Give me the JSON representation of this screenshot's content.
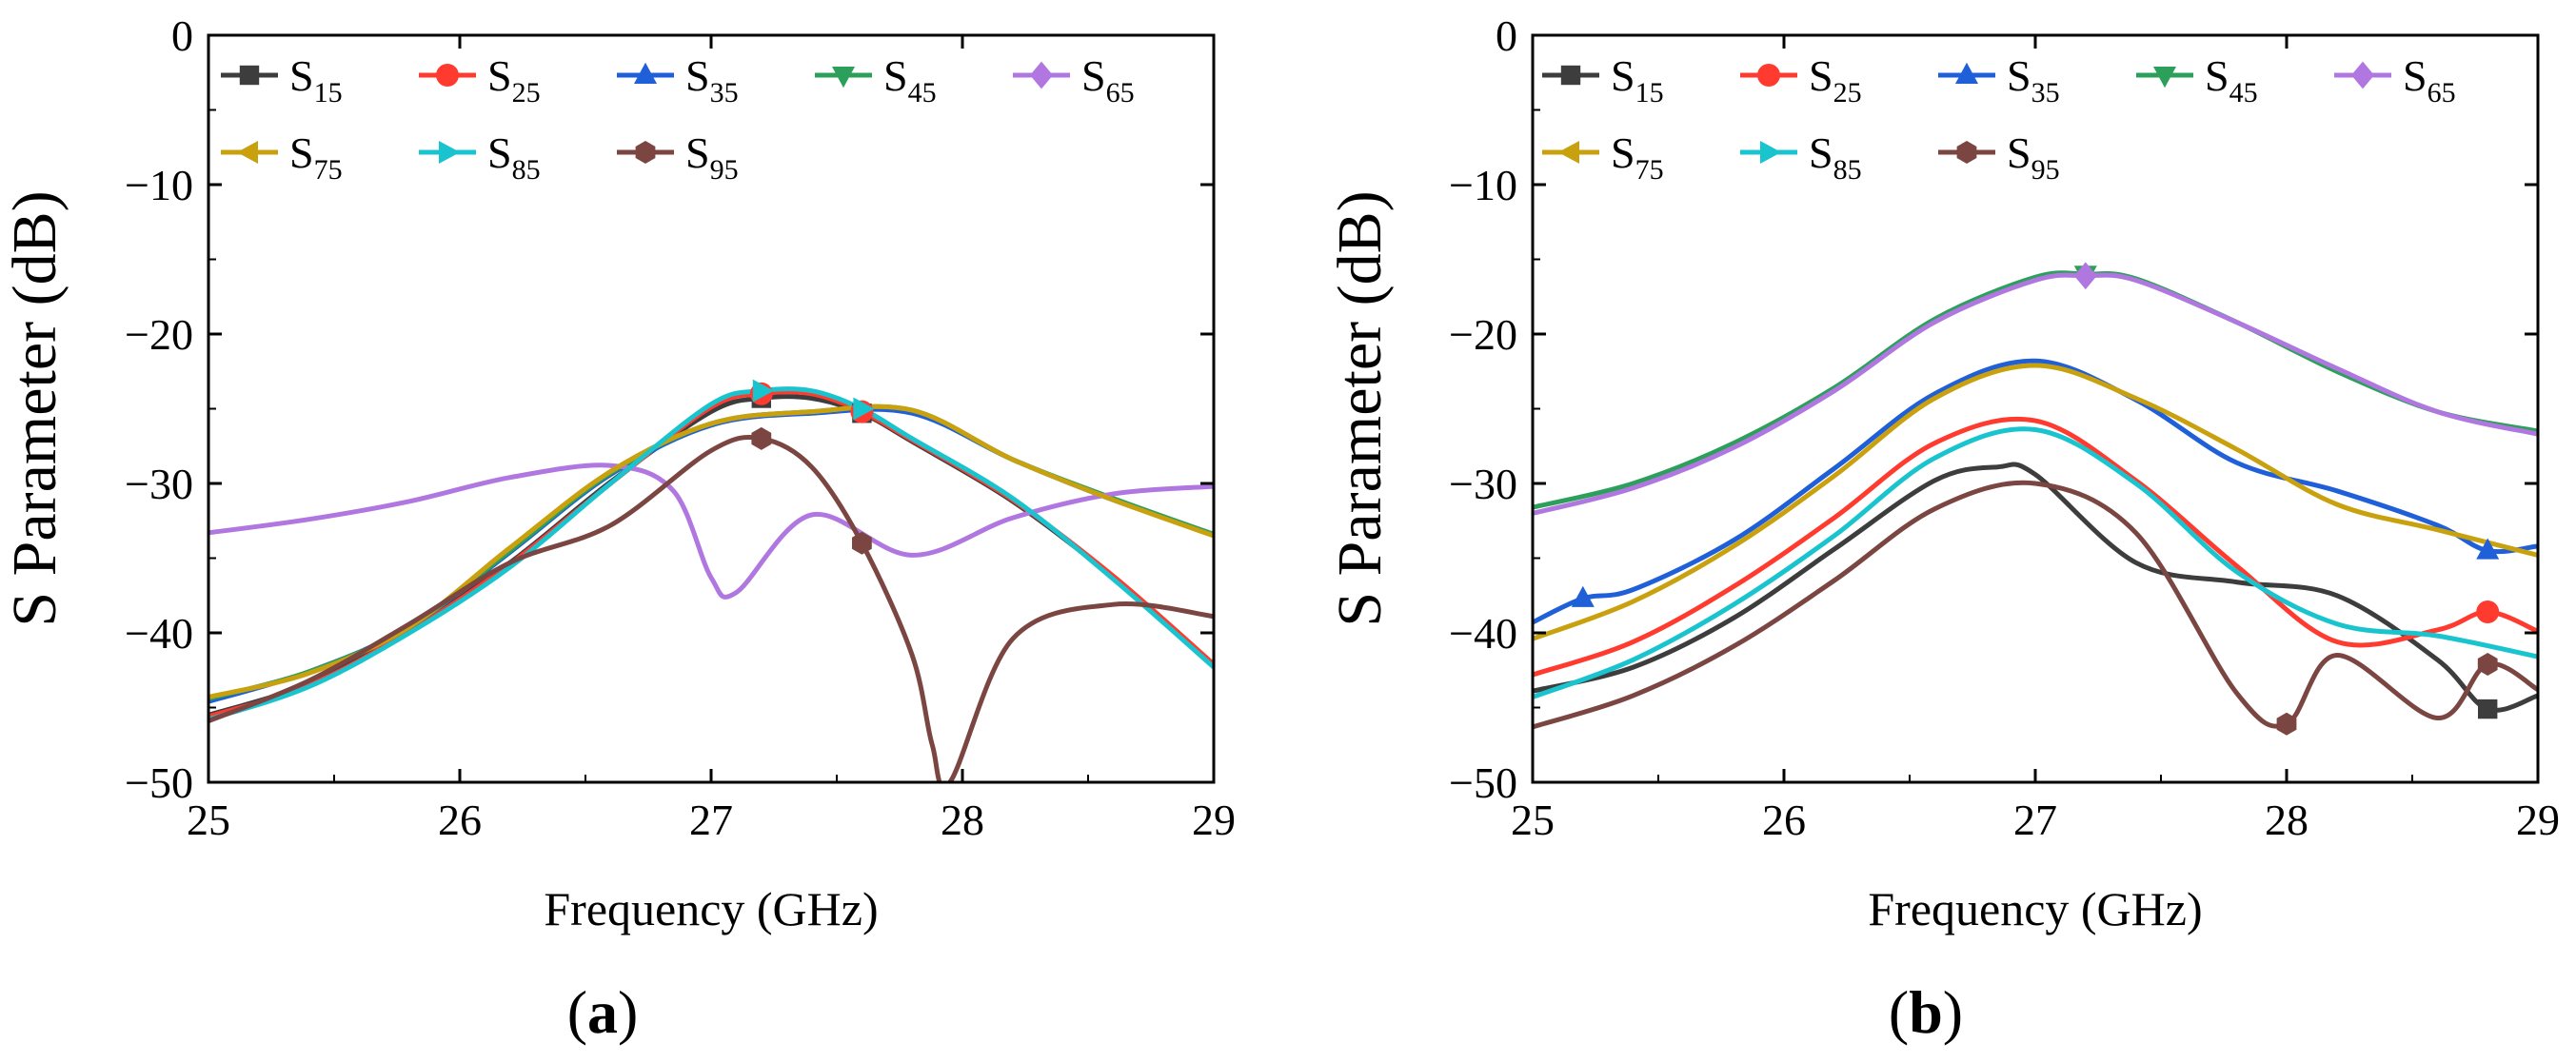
{
  "chart_data": [
    {
      "type": "line",
      "panel_label": "a",
      "xlabel": "Frequency (GHz)",
      "ylabel": "S Parameter (dB)",
      "xlim": [
        25,
        29
      ],
      "ylim": [
        -50,
        0
      ],
      "xticks": [
        25,
        26,
        27,
        28,
        29
      ],
      "yticks": [
        0,
        -10,
        -20,
        -30,
        -40,
        -50
      ],
      "ytick_labels": [
        "0",
        "−10",
        "−20",
        "−30",
        "−40",
        "−50"
      ],
      "legend": [
        [
          "S15",
          "S25",
          "S35",
          "S45",
          "S65"
        ],
        [
          "S75",
          "S85",
          "S95"
        ]
      ],
      "series": [
        {
          "name": "S15",
          "base": "S",
          "sub": "15",
          "color": "#3d3d3d",
          "marker": "square",
          "x": [
            25,
            25.4,
            25.8,
            26.2,
            26.6,
            27,
            27.2,
            27.4,
            27.6,
            27.8,
            28.2,
            28.6,
            29
          ],
          "y": [
            -45.5,
            -43.4,
            -39.8,
            -35.3,
            -29.9,
            -25.2,
            -24.3,
            -24.3,
            -25.3,
            -27.2,
            -31.2,
            -36.3,
            -42.2
          ]
        },
        {
          "name": "S25",
          "base": "S",
          "sub": "25",
          "color": "#ff3b30",
          "marker": "circle",
          "x": [
            25,
            25.4,
            25.8,
            26.2,
            26.6,
            27,
            27.2,
            27.4,
            27.6,
            27.8,
            28.2,
            28.6,
            29
          ],
          "y": [
            -45.6,
            -43.5,
            -39.9,
            -35.4,
            -30.0,
            -24.9,
            -24.0,
            -24.0,
            -25.2,
            -27.1,
            -31.1,
            -36.2,
            -42.1
          ]
        },
        {
          "name": "S35",
          "base": "S",
          "sub": "35",
          "color": "#1f5fd8",
          "marker": "triangle-up",
          "x": [
            25,
            25.4,
            25.8,
            26.2,
            26.6,
            27,
            27.4,
            27.8,
            28.2,
            28.6,
            29
          ],
          "y": [
            -44.6,
            -42.6,
            -39.6,
            -34.6,
            -29.4,
            -26.1,
            -25.3,
            -25.3,
            -28.4,
            -31.1,
            -33.4
          ]
        },
        {
          "name": "S45",
          "base": "S",
          "sub": "45",
          "color": "#2ca05a",
          "marker": "triangle-down",
          "x": [
            25,
            25.4,
            25.8,
            26.2,
            26.6,
            27,
            27.4,
            27.8,
            28.2,
            28.6,
            29
          ],
          "y": [
            -44.4,
            -42.6,
            -39.6,
            -34.5,
            -29.3,
            -26.0,
            -25.2,
            -25.1,
            -28.4,
            -31.0,
            -33.4
          ]
        },
        {
          "name": "S65",
          "base": "S",
          "sub": "65",
          "color": "#b077e0",
          "marker": "diamond",
          "x": [
            25,
            25.4,
            25.8,
            26.2,
            26.6,
            26.85,
            27,
            27.1,
            27.4,
            27.8,
            28.2,
            28.6,
            29
          ],
          "y": [
            -33.3,
            -32.4,
            -31.2,
            -29.6,
            -28.8,
            -30.5,
            -36.3,
            -37.3,
            -32.1,
            -34.8,
            -32.3,
            -30.7,
            -30.2
          ]
        },
        {
          "name": "S75",
          "base": "S",
          "sub": "75",
          "color": "#c9a10f",
          "marker": "triangle-left",
          "x": [
            25,
            25.4,
            25.8,
            26.2,
            26.6,
            27,
            27.4,
            27.8,
            28.2,
            28.6,
            29
          ],
          "y": [
            -44.3,
            -42.7,
            -39.6,
            -34.3,
            -29.2,
            -26.0,
            -25.2,
            -25.1,
            -28.4,
            -31.1,
            -33.5
          ]
        },
        {
          "name": "S85",
          "base": "S",
          "sub": "85",
          "color": "#19c4cf",
          "marker": "triangle-right",
          "x": [
            25,
            25.4,
            25.8,
            26.2,
            26.6,
            27,
            27.2,
            27.4,
            27.6,
            27.8,
            28.2,
            28.6,
            29
          ],
          "y": [
            -45.8,
            -43.6,
            -40.0,
            -35.6,
            -30.0,
            -24.7,
            -23.8,
            -23.8,
            -25.0,
            -27.0,
            -31.0,
            -36.4,
            -42.3
          ]
        },
        {
          "name": "S95",
          "base": "S",
          "sub": "95",
          "color": "#7b4642",
          "marker": "hexagon",
          "x": [
            25,
            25.4,
            25.8,
            26.2,
            26.6,
            27,
            27.2,
            27.4,
            27.6,
            27.8,
            27.88,
            27.95,
            28.2,
            28.6,
            29
          ],
          "y": [
            -45.9,
            -43.2,
            -39.4,
            -35.3,
            -32.8,
            -27.8,
            -27.0,
            -28.9,
            -34.0,
            -41.5,
            -47.5,
            -50.0,
            -40.4,
            -38.1,
            -38.9
          ]
        }
      ]
    },
    {
      "type": "line",
      "panel_label": "b",
      "xlabel": "Frequency (GHz)",
      "ylabel": "S Parameter (dB)",
      "xlim": [
        25,
        29
      ],
      "ylim": [
        -50,
        0
      ],
      "xticks": [
        25,
        26,
        27,
        28,
        29
      ],
      "yticks": [
        0,
        -10,
        -20,
        -30,
        -40,
        -50
      ],
      "ytick_labels": [
        "0",
        "−10",
        "−20",
        "−30",
        "−40",
        "−50"
      ],
      "legend": [
        [
          "S15",
          "S25",
          "S35",
          "S45",
          "S65"
        ],
        [
          "S75",
          "S85",
          "S95"
        ]
      ],
      "series": [
        {
          "name": "S15",
          "base": "S",
          "sub": "15",
          "color": "#3d3d3d",
          "marker": "square",
          "x": [
            25,
            25.4,
            25.8,
            26.2,
            26.6,
            26.85,
            27,
            27.4,
            27.8,
            28.2,
            28.6,
            28.8,
            29
          ],
          "y": [
            -43.9,
            -42.3,
            -39.0,
            -34.4,
            -29.8,
            -28.9,
            -29.4,
            -35.3,
            -36.6,
            -37.5,
            -41.8,
            -45.1,
            -44.2
          ]
        },
        {
          "name": "S25",
          "base": "S",
          "sub": "25",
          "color": "#ff3b30",
          "marker": "circle",
          "x": [
            25,
            25.4,
            25.8,
            26.2,
            26.6,
            27,
            27.4,
            27.8,
            28.2,
            28.6,
            28.8,
            29
          ],
          "y": [
            -42.8,
            -40.6,
            -36.9,
            -32.3,
            -27.3,
            -25.8,
            -29.8,
            -35.5,
            -40.6,
            -39.8,
            -38.6,
            -39.9
          ]
        },
        {
          "name": "S35",
          "base": "S",
          "sub": "35",
          "color": "#1f5fd8",
          "marker": "triangle-up",
          "x": [
            25,
            25.2,
            25.4,
            25.8,
            26.2,
            26.6,
            27,
            27.4,
            27.8,
            28.2,
            28.6,
            28.8,
            29
          ],
          "y": [
            -39.3,
            -37.7,
            -37.1,
            -33.8,
            -29.0,
            -24.0,
            -21.8,
            -24.4,
            -28.6,
            -30.5,
            -32.8,
            -34.5,
            -34.2
          ]
        },
        {
          "name": "S45",
          "base": "S",
          "sub": "45",
          "color": "#2ca05a",
          "marker": "triangle-down",
          "x": [
            25,
            25.4,
            25.8,
            26.2,
            26.6,
            27,
            27.2,
            27.4,
            27.8,
            28.2,
            28.6,
            29
          ],
          "y": [
            -31.6,
            -30.0,
            -27.3,
            -23.6,
            -19.0,
            -16.2,
            -16.0,
            -16.3,
            -19.2,
            -22.5,
            -25.2,
            -26.5
          ]
        },
        {
          "name": "S65",
          "base": "S",
          "sub": "65",
          "color": "#b077e0",
          "marker": "diamond",
          "x": [
            25,
            25.4,
            25.8,
            26.2,
            26.6,
            27,
            27.2,
            27.4,
            27.8,
            28.2,
            28.6,
            29
          ],
          "y": [
            -32.0,
            -30.3,
            -27.6,
            -23.8,
            -19.2,
            -16.4,
            -16.1,
            -16.4,
            -19.2,
            -22.3,
            -25.2,
            -26.7
          ]
        },
        {
          "name": "S75",
          "base": "S",
          "sub": "75",
          "color": "#c9a10f",
          "marker": "triangle-left",
          "x": [
            25,
            25.4,
            25.8,
            26.2,
            26.6,
            27,
            27.4,
            27.8,
            28.2,
            28.6,
            29
          ],
          "y": [
            -40.4,
            -37.9,
            -34.2,
            -29.5,
            -24.3,
            -22.1,
            -24.3,
            -27.7,
            -31.4,
            -33.1,
            -34.8
          ]
        },
        {
          "name": "S85",
          "base": "S",
          "sub": "85",
          "color": "#19c4cf",
          "marker": "triangle-right",
          "x": [
            25,
            25.4,
            25.8,
            26.2,
            26.6,
            27,
            27.4,
            27.8,
            28.2,
            28.6,
            29
          ],
          "y": [
            -44.3,
            -41.8,
            -38.1,
            -33.5,
            -28.3,
            -26.4,
            -30.0,
            -35.9,
            -39.4,
            -40.2,
            -41.6
          ]
        },
        {
          "name": "S95",
          "base": "S",
          "sub": "95",
          "color": "#7b4642",
          "marker": "hexagon",
          "x": [
            25,
            25.4,
            25.8,
            26.2,
            26.6,
            27,
            27.4,
            27.8,
            28.0,
            28.2,
            28.6,
            28.8,
            29
          ],
          "y": [
            -46.3,
            -44.2,
            -40.9,
            -36.5,
            -31.7,
            -30.0,
            -33.3,
            -44.0,
            -46.1,
            -41.5,
            -45.7,
            -42.1,
            -43.8
          ]
        }
      ]
    }
  ]
}
